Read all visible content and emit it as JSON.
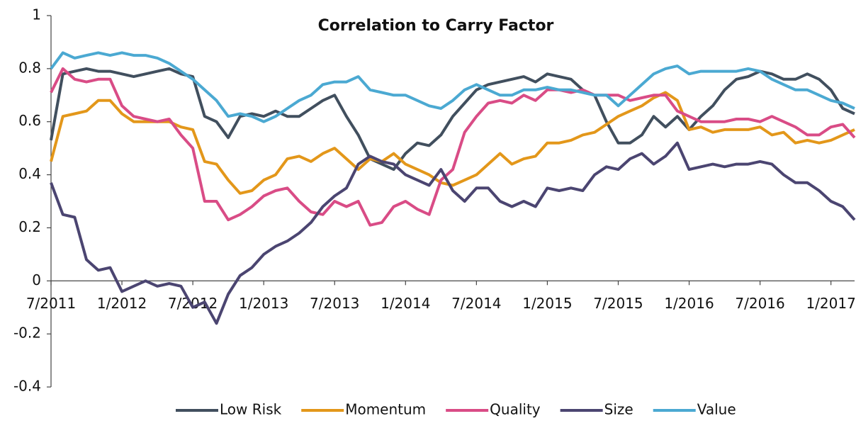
{
  "chart_data": {
    "type": "line",
    "title": "Correlation to Carry Factor",
    "x": [
      "2011-07",
      "2011-08",
      "2011-09",
      "2011-10",
      "2011-11",
      "2011-12",
      "2012-01",
      "2012-02",
      "2012-03",
      "2012-04",
      "2012-05",
      "2012-06",
      "2012-07",
      "2012-08",
      "2012-09",
      "2012-10",
      "2012-11",
      "2012-12",
      "2013-01",
      "2013-02",
      "2013-03",
      "2013-04",
      "2013-05",
      "2013-06",
      "2013-07",
      "2013-08",
      "2013-09",
      "2013-10",
      "2013-11",
      "2013-12",
      "2014-01",
      "2014-02",
      "2014-03",
      "2014-04",
      "2014-05",
      "2014-06",
      "2014-07",
      "2014-08",
      "2014-09",
      "2014-10",
      "2014-11",
      "2014-12",
      "2015-01",
      "2015-02",
      "2015-03",
      "2015-04",
      "2015-05",
      "2015-06",
      "2015-07",
      "2015-08",
      "2015-09",
      "2015-10",
      "2015-11",
      "2015-12",
      "2016-01",
      "2016-02",
      "2016-03",
      "2016-04",
      "2016-05",
      "2016-06",
      "2016-07",
      "2016-08",
      "2016-09",
      "2016-10",
      "2016-11",
      "2016-12",
      "2017-01",
      "2017-02",
      "2017-03"
    ],
    "series": [
      {
        "name": "Low Risk",
        "color": "#414f5e",
        "values": [
          0.53,
          0.78,
          0.79,
          0.8,
          0.79,
          0.79,
          0.78,
          0.77,
          0.78,
          0.79,
          0.8,
          0.78,
          0.77,
          0.62,
          0.6,
          0.54,
          0.62,
          0.63,
          0.62,
          0.64,
          0.62,
          0.62,
          0.65,
          0.68,
          0.7,
          0.62,
          0.55,
          0.46,
          0.44,
          0.42,
          0.48,
          0.52,
          0.51,
          0.55,
          0.62,
          0.67,
          0.72,
          0.74,
          0.75,
          0.76,
          0.77,
          0.75,
          0.78,
          0.77,
          0.76,
          0.72,
          0.7,
          0.6,
          0.52,
          0.52,
          0.55,
          0.62,
          0.58,
          0.62,
          0.57,
          0.62,
          0.66,
          0.72,
          0.76,
          0.77,
          0.79,
          0.78,
          0.76,
          0.76,
          0.78,
          0.76,
          0.72,
          0.65,
          0.63
        ]
      },
      {
        "name": "Momentum",
        "color": "#e3971a",
        "values": [
          0.45,
          0.62,
          0.63,
          0.64,
          0.68,
          0.68,
          0.63,
          0.6,
          0.6,
          0.6,
          0.6,
          0.58,
          0.57,
          0.45,
          0.44,
          0.38,
          0.33,
          0.34,
          0.38,
          0.4,
          0.46,
          0.47,
          0.45,
          0.48,
          0.5,
          0.46,
          0.42,
          0.46,
          0.45,
          0.48,
          0.44,
          0.42,
          0.4,
          0.37,
          0.36,
          0.38,
          0.4,
          0.44,
          0.48,
          0.44,
          0.46,
          0.47,
          0.52,
          0.52,
          0.53,
          0.55,
          0.56,
          0.59,
          0.62,
          0.64,
          0.66,
          0.69,
          0.71,
          0.68,
          0.57,
          0.58,
          0.56,
          0.57,
          0.57,
          0.57,
          0.58,
          0.55,
          0.56,
          0.52,
          0.53,
          0.52,
          0.53,
          0.55,
          0.57
        ]
      },
      {
        "name": "Quality",
        "color": "#d94c86",
        "values": [
          0.71,
          0.8,
          0.76,
          0.75,
          0.76,
          0.76,
          0.66,
          0.62,
          0.61,
          0.6,
          0.61,
          0.55,
          0.5,
          0.3,
          0.3,
          0.23,
          0.25,
          0.28,
          0.32,
          0.34,
          0.35,
          0.3,
          0.26,
          0.25,
          0.3,
          0.28,
          0.3,
          0.21,
          0.22,
          0.28,
          0.3,
          0.27,
          0.25,
          0.38,
          0.42,
          0.56,
          0.62,
          0.67,
          0.68,
          0.67,
          0.7,
          0.68,
          0.72,
          0.72,
          0.71,
          0.72,
          0.7,
          0.7,
          0.7,
          0.68,
          0.69,
          0.7,
          0.7,
          0.64,
          0.62,
          0.6,
          0.6,
          0.6,
          0.61,
          0.61,
          0.6,
          0.62,
          0.6,
          0.58,
          0.55,
          0.55,
          0.58,
          0.59,
          0.54
        ]
      },
      {
        "name": "Size",
        "color": "#4b4571",
        "values": [
          0.37,
          0.25,
          0.24,
          0.08,
          0.04,
          0.05,
          -0.04,
          -0.02,
          0.0,
          -0.02,
          -0.01,
          -0.02,
          -0.1,
          -0.08,
          -0.16,
          -0.05,
          0.02,
          0.05,
          0.1,
          0.13,
          0.15,
          0.18,
          0.22,
          0.28,
          0.32,
          0.35,
          0.44,
          0.47,
          0.45,
          0.44,
          0.4,
          0.38,
          0.36,
          0.42,
          0.34,
          0.3,
          0.35,
          0.35,
          0.3,
          0.28,
          0.3,
          0.28,
          0.35,
          0.34,
          0.35,
          0.34,
          0.4,
          0.43,
          0.42,
          0.46,
          0.48,
          0.44,
          0.47,
          0.52,
          0.42,
          0.43,
          0.44,
          0.43,
          0.44,
          0.44,
          0.45,
          0.44,
          0.4,
          0.37,
          0.37,
          0.34,
          0.3,
          0.28,
          0.23
        ]
      },
      {
        "name": "Value",
        "color": "#4ba9d2",
        "values": [
          0.8,
          0.86,
          0.84,
          0.85,
          0.86,
          0.85,
          0.86,
          0.85,
          0.85,
          0.84,
          0.82,
          0.79,
          0.76,
          0.72,
          0.68,
          0.62,
          0.63,
          0.62,
          0.6,
          0.62,
          0.65,
          0.68,
          0.7,
          0.74,
          0.75,
          0.75,
          0.77,
          0.72,
          0.71,
          0.7,
          0.7,
          0.68,
          0.66,
          0.65,
          0.68,
          0.72,
          0.74,
          0.72,
          0.7,
          0.7,
          0.72,
          0.72,
          0.73,
          0.72,
          0.72,
          0.71,
          0.7,
          0.7,
          0.66,
          0.7,
          0.74,
          0.78,
          0.8,
          0.81,
          0.78,
          0.79,
          0.79,
          0.79,
          0.79,
          0.8,
          0.79,
          0.76,
          0.74,
          0.72,
          0.72,
          0.7,
          0.68,
          0.67,
          0.65
        ]
      }
    ],
    "xlim": [
      "2011-07",
      "2017-03"
    ],
    "xticks": [
      {
        "value": "2011-07",
        "label": "7/2011"
      },
      {
        "value": "2012-01",
        "label": "1/2012"
      },
      {
        "value": "2012-07",
        "label": "7/2012"
      },
      {
        "value": "2013-01",
        "label": "1/2013"
      },
      {
        "value": "2013-07",
        "label": "7/2013"
      },
      {
        "value": "2014-01",
        "label": "1/2014"
      },
      {
        "value": "2014-07",
        "label": "7/2014"
      },
      {
        "value": "2015-01",
        "label": "1/2015"
      },
      {
        "value": "2015-07",
        "label": "7/2015"
      },
      {
        "value": "2016-01",
        "label": "1/2016"
      },
      {
        "value": "2016-07",
        "label": "7/2016"
      },
      {
        "value": "2017-01",
        "label": "1/2017"
      }
    ],
    "ylim": [
      -0.4,
      1
    ],
    "yticks": [
      -0.4,
      -0.2,
      0,
      0.2,
      0.4,
      0.6,
      0.8,
      1
    ],
    "grid": false,
    "legend": "bottom"
  }
}
